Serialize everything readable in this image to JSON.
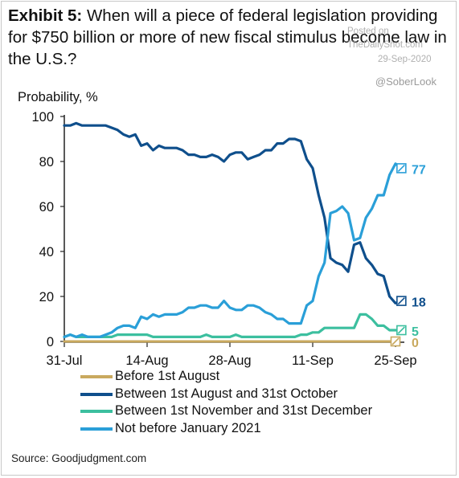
{
  "title_bold": "Exhibit 5:",
  "title_rest": " When will a piece of federal legislation providing for $750 billion or more of new fiscal stimulus become law in the U.S.?",
  "watermark": {
    "line1": "Posted on",
    "line2": "TheDailyShot.com",
    "line3": "29-Sep-2020",
    "handle": "@SoberLook"
  },
  "source": "Source: Goodjudgment.com",
  "chart_data": {
    "type": "line",
    "ylabel": "Probability, %",
    "xlabel": "",
    "ylim": [
      0,
      100
    ],
    "yticks": [
      0,
      20,
      40,
      60,
      80,
      100
    ],
    "x_ticks": [
      {
        "label": "31-Jul",
        "day": 0
      },
      {
        "label": "14-Aug",
        "day": 14
      },
      {
        "label": "28-Aug",
        "day": 28
      },
      {
        "label": "11-Sep",
        "day": 42
      },
      {
        "label": "25-Sep",
        "day": 56
      }
    ],
    "x_range_days": [
      0,
      56
    ],
    "grid": false,
    "legend_position": "bottom",
    "series": [
      {
        "name": "Before 1st August",
        "color": "#c9a95e",
        "end_label": "0",
        "points": [
          [
            0,
            0
          ],
          [
            56,
            0
          ]
        ]
      },
      {
        "name": "Between 1st August and 31st October",
        "color": "#0f4f8c",
        "end_label": "18",
        "points": [
          [
            0,
            96
          ],
          [
            1,
            96
          ],
          [
            2,
            97
          ],
          [
            3,
            96
          ],
          [
            4,
            96
          ],
          [
            5,
            96
          ],
          [
            6,
            96
          ],
          [
            7,
            96
          ],
          [
            8,
            95
          ],
          [
            9,
            94
          ],
          [
            10,
            92
          ],
          [
            11,
            91
          ],
          [
            12,
            92
          ],
          [
            13,
            87
          ],
          [
            14,
            88
          ],
          [
            15,
            85
          ],
          [
            16,
            87
          ],
          [
            17,
            86
          ],
          [
            18,
            86
          ],
          [
            19,
            86
          ],
          [
            20,
            85
          ],
          [
            21,
            83
          ],
          [
            22,
            83
          ],
          [
            23,
            82
          ],
          [
            24,
            82
          ],
          [
            25,
            83
          ],
          [
            26,
            82
          ],
          [
            27,
            80
          ],
          [
            28,
            83
          ],
          [
            29,
            84
          ],
          [
            30,
            84
          ],
          [
            31,
            81
          ],
          [
            32,
            82
          ],
          [
            33,
            83
          ],
          [
            34,
            85
          ],
          [
            35,
            85
          ],
          [
            36,
            88
          ],
          [
            37,
            88
          ],
          [
            38,
            90
          ],
          [
            39,
            90
          ],
          [
            40,
            89
          ],
          [
            41,
            81
          ],
          [
            42,
            77
          ],
          [
            43,
            65
          ],
          [
            44,
            55
          ],
          [
            45,
            37
          ],
          [
            46,
            35
          ],
          [
            47,
            34
          ],
          [
            48,
            31
          ],
          [
            49,
            43
          ],
          [
            50,
            44
          ],
          [
            51,
            37
          ],
          [
            52,
            34
          ],
          [
            53,
            30
          ],
          [
            54,
            29
          ],
          [
            55,
            20
          ],
          [
            56,
            17
          ],
          [
            57,
            18
          ]
        ]
      },
      {
        "name": "Between 1st November and 31st December",
        "color": "#3cbf9f",
        "end_label": "5",
        "points": [
          [
            0,
            2
          ],
          [
            1,
            3
          ],
          [
            2,
            2
          ],
          [
            3,
            2
          ],
          [
            4,
            2
          ],
          [
            5,
            2
          ],
          [
            6,
            2
          ],
          [
            7,
            2
          ],
          [
            8,
            2
          ],
          [
            9,
            3
          ],
          [
            10,
            3
          ],
          [
            11,
            3
          ],
          [
            12,
            3
          ],
          [
            13,
            3
          ],
          [
            14,
            3
          ],
          [
            15,
            2
          ],
          [
            16,
            2
          ],
          [
            17,
            2
          ],
          [
            18,
            2
          ],
          [
            19,
            2
          ],
          [
            20,
            2
          ],
          [
            21,
            2
          ],
          [
            22,
            2
          ],
          [
            23,
            2
          ],
          [
            24,
            3
          ],
          [
            25,
            2
          ],
          [
            26,
            2
          ],
          [
            27,
            2
          ],
          [
            28,
            2
          ],
          [
            29,
            3
          ],
          [
            30,
            2
          ],
          [
            31,
            2
          ],
          [
            32,
            2
          ],
          [
            33,
            2
          ],
          [
            34,
            2
          ],
          [
            35,
            2
          ],
          [
            36,
            2
          ],
          [
            37,
            2
          ],
          [
            38,
            2
          ],
          [
            39,
            2
          ],
          [
            40,
            3
          ],
          [
            41,
            3
          ],
          [
            42,
            4
          ],
          [
            43,
            4
          ],
          [
            44,
            6
          ],
          [
            45,
            6
          ],
          [
            46,
            6
          ],
          [
            47,
            6
          ],
          [
            48,
            6
          ],
          [
            49,
            6
          ],
          [
            50,
            12
          ],
          [
            51,
            12
          ],
          [
            52,
            10
          ],
          [
            53,
            7
          ],
          [
            54,
            7
          ],
          [
            55,
            5
          ],
          [
            56,
            5
          ],
          [
            57,
            5
          ]
        ]
      },
      {
        "name": "Not before January 2021",
        "color": "#2a9fd8",
        "end_label": "77",
        "points": [
          [
            0,
            2
          ],
          [
            1,
            3
          ],
          [
            2,
            2
          ],
          [
            3,
            3
          ],
          [
            4,
            2
          ],
          [
            5,
            2
          ],
          [
            6,
            2
          ],
          [
            7,
            3
          ],
          [
            8,
            4
          ],
          [
            9,
            6
          ],
          [
            10,
            7
          ],
          [
            11,
            7
          ],
          [
            12,
            6
          ],
          [
            13,
            11
          ],
          [
            14,
            10
          ],
          [
            15,
            12
          ],
          [
            16,
            11
          ],
          [
            17,
            12
          ],
          [
            18,
            12
          ],
          [
            19,
            12
          ],
          [
            20,
            13
          ],
          [
            21,
            15
          ],
          [
            22,
            15
          ],
          [
            23,
            16
          ],
          [
            24,
            16
          ],
          [
            25,
            15
          ],
          [
            26,
            15
          ],
          [
            27,
            18
          ],
          [
            28,
            15
          ],
          [
            29,
            14
          ],
          [
            30,
            14
          ],
          [
            31,
            16
          ],
          [
            32,
            16
          ],
          [
            33,
            15
          ],
          [
            34,
            13
          ],
          [
            35,
            12
          ],
          [
            36,
            10
          ],
          [
            37,
            10
          ],
          [
            38,
            8
          ],
          [
            39,
            8
          ],
          [
            40,
            8
          ],
          [
            41,
            16
          ],
          [
            42,
            18
          ],
          [
            43,
            29
          ],
          [
            44,
            35
          ],
          [
            45,
            57
          ],
          [
            46,
            58
          ],
          [
            47,
            60
          ],
          [
            48,
            57
          ],
          [
            49,
            45
          ],
          [
            50,
            46
          ],
          [
            51,
            55
          ],
          [
            52,
            59
          ],
          [
            53,
            65
          ],
          [
            54,
            65
          ],
          [
            55,
            74
          ],
          [
            56,
            79
          ],
          [
            57,
            77
          ]
        ]
      }
    ]
  }
}
